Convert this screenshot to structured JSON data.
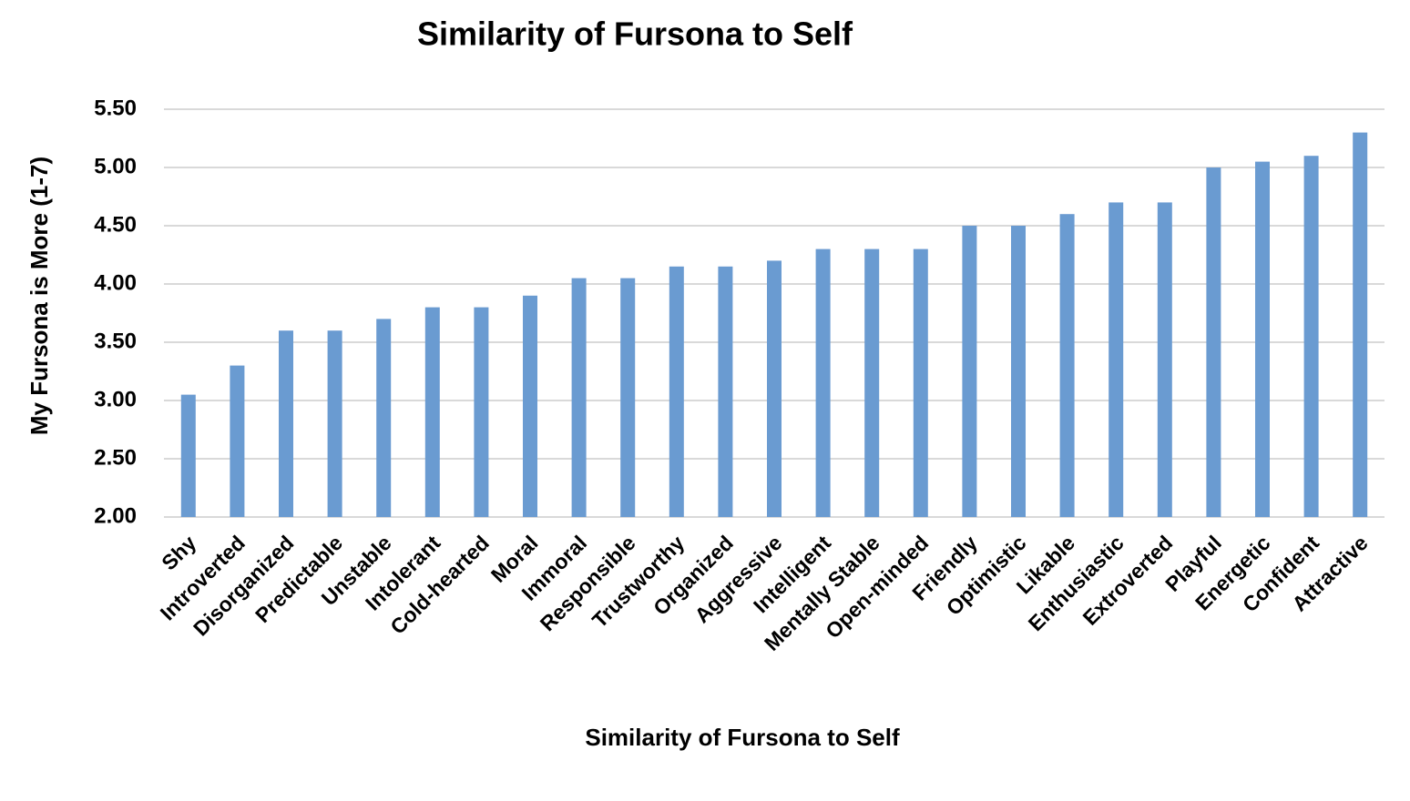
{
  "chart_data": {
    "type": "bar",
    "title": "Similarity of Fursona to Self",
    "x_label": "Similarity of Fursona to Self",
    "y_label": "My Fursona is More (1-7)",
    "categories": [
      "Shy",
      "Introverted",
      "Disorganized",
      "Predictable",
      "Unstable",
      "Intolerant",
      "Cold-hearted",
      "Moral",
      "Immoral",
      "Responsible",
      "Trustworthy",
      "Organized",
      "Aggressive",
      "Intelligent",
      "Mentally Stable",
      "Open-minded",
      "Friendly",
      "Optimistic",
      "Likable",
      "Enthusiastic",
      "Extroverted",
      "Playful",
      "Energetic",
      "Confident",
      "Attractive"
    ],
    "values": [
      3.05,
      3.3,
      3.6,
      3.6,
      3.7,
      3.8,
      3.8,
      3.9,
      4.05,
      4.05,
      4.15,
      4.15,
      4.2,
      4.3,
      4.3,
      4.3,
      4.5,
      4.5,
      4.6,
      4.7,
      4.7,
      5.0,
      5.05,
      5.1,
      5.3
    ],
    "color": "#6a9bd1",
    "ylim": [
      2,
      5.5
    ],
    "yticks": [
      {
        "value": 2,
        "label": "2.00"
      },
      {
        "value": 2.5,
        "label": "2.50"
      },
      {
        "value": 3,
        "label": "3.00"
      },
      {
        "value": 3.5,
        "label": "3.50"
      },
      {
        "value": 4,
        "label": "4.00"
      },
      {
        "value": 4.5,
        "label": "4.50"
      },
      {
        "value": 5,
        "label": "5.00"
      },
      {
        "value": 5.5,
        "label": "5.50"
      }
    ],
    "grid": true
  }
}
